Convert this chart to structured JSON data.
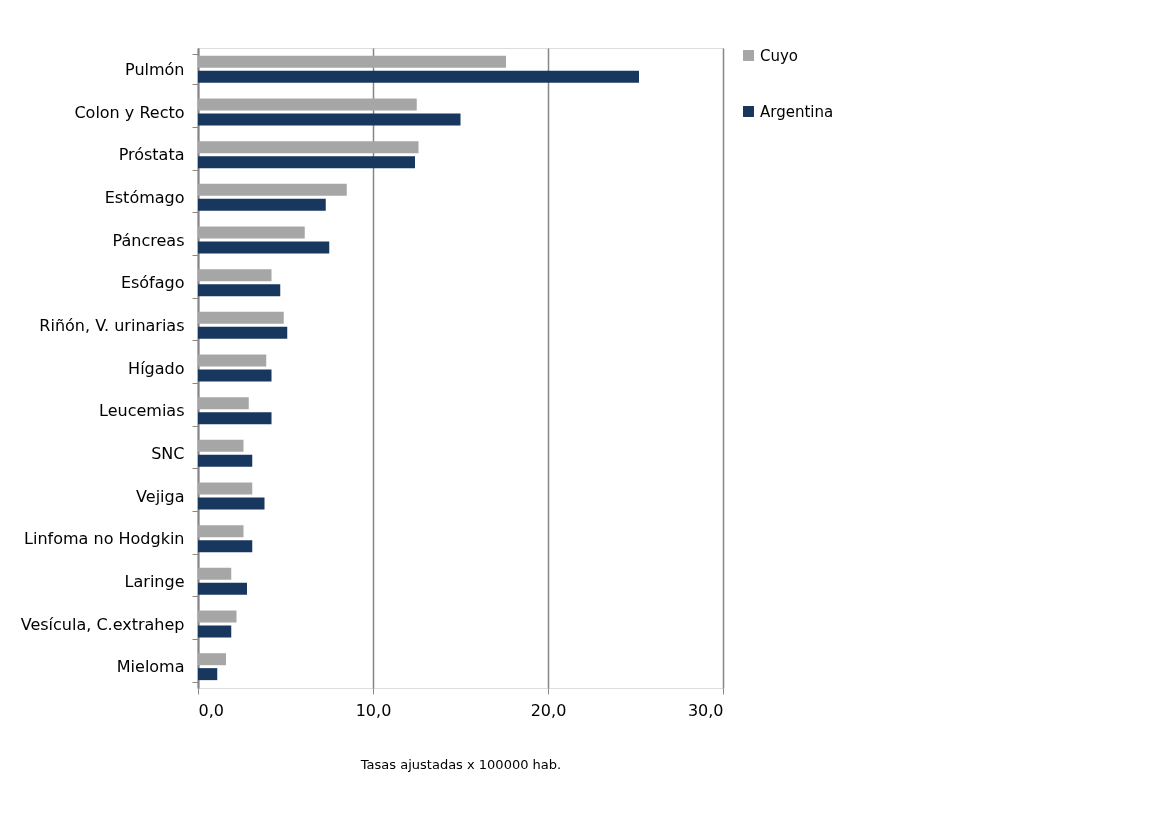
{
  "chart_data": {
    "type": "bar",
    "orientation": "horizontal",
    "xlabel": "Tasas ajustadas x 100000 hab.",
    "categories": [
      "Pulmón",
      "Colon y Recto",
      "Próstata",
      "Estómago",
      "Páncreas",
      "Esófago",
      "Riñón, V. urinarias",
      "Hígado",
      "Leucemias",
      "SNC",
      "Vejiga",
      "Linfoma no Hodgkin",
      "Laringe",
      "Vesícula, C.extrahep",
      "Mieloma"
    ],
    "series": [
      {
        "name": "Cuyo",
        "color": "#a6a6a6",
        "values": [
          17.6,
          12.5,
          12.6,
          8.5,
          6.1,
          4.2,
          4.9,
          3.9,
          2.9,
          2.6,
          3.1,
          2.6,
          1.9,
          2.2,
          1.6
        ]
      },
      {
        "name": "Argentina",
        "color": "#17375e",
        "values": [
          25.2,
          15.0,
          12.4,
          7.3,
          7.5,
          4.7,
          5.1,
          4.2,
          4.2,
          3.1,
          3.8,
          3.1,
          2.8,
          1.9,
          1.1
        ]
      }
    ],
    "xlim": [
      0,
      30
    ],
    "xticks": [
      {
        "value": 0,
        "label": "0,0"
      },
      {
        "value": 10,
        "label": "10,0"
      },
      {
        "value": 20,
        "label": "20,0"
      },
      {
        "value": 30,
        "label": "30,0"
      }
    ],
    "grid": "x",
    "legend": "right"
  }
}
